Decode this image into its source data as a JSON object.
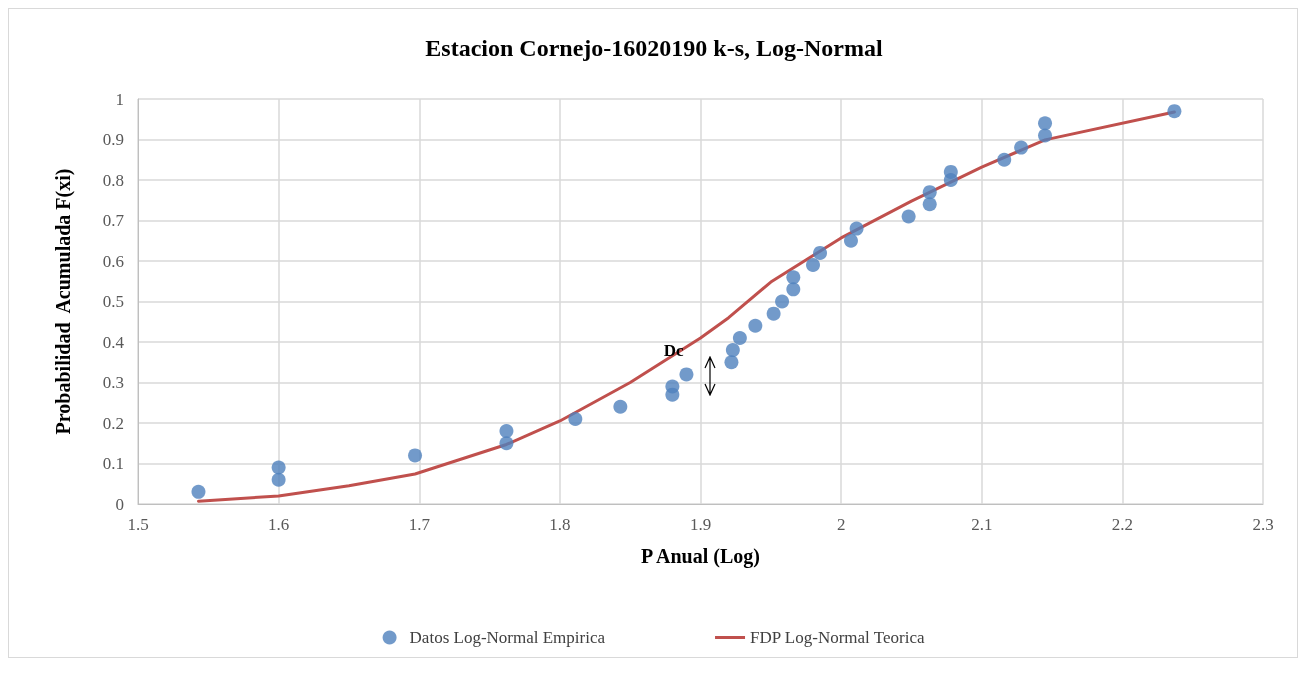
{
  "chart_data": {
    "type": "scatter",
    "title": "Estacion Cornejo-16020190 k-s, Log-Normal",
    "xlabel": "P Anual (Log)",
    "ylabel": "Probabilidad  Acumulada F(xi)",
    "xlim": [
      1.5,
      2.3
    ],
    "xticks": [
      1.5,
      1.6,
      1.7,
      1.8,
      1.9,
      2,
      2.1,
      2.2,
      2.3
    ],
    "ylim": [
      0,
      1
    ],
    "yticks": [
      0,
      0.1,
      0.2,
      0.3,
      0.4,
      0.5,
      0.6,
      0.7,
      0.8,
      0.9,
      1
    ],
    "grid": true,
    "legend": "bottom",
    "marker": "circle",
    "annotations": [
      {
        "text": "Dc",
        "x": 1.895,
        "y": 0.4
      }
    ],
    "series": [
      {
        "name": "Datos Log-Normal Empirica",
        "color": "#4f81bd",
        "x": [
          1.543,
          1.6,
          1.6,
          1.697,
          1.762,
          1.762,
          1.811,
          1.843,
          1.88,
          1.88,
          1.89,
          1.922,
          1.923,
          1.928,
          1.939,
          1.952,
          1.958,
          1.966,
          1.966,
          1.98,
          1.985,
          2.007,
          2.011,
          2.048,
          2.063,
          2.063,
          2.078,
          2.078,
          2.116,
          2.128,
          2.145,
          2.145,
          2.237
        ],
        "values": [
          0.03,
          0.06,
          0.09,
          0.12,
          0.15,
          0.18,
          0.21,
          0.24,
          0.27,
          0.29,
          0.32,
          0.35,
          0.38,
          0.41,
          0.44,
          0.47,
          0.5,
          0.53,
          0.56,
          0.59,
          0.62,
          0.65,
          0.68,
          0.71,
          0.74,
          0.77,
          0.8,
          0.82,
          0.85,
          0.88,
          0.91,
          0.94,
          0.97
        ]
      },
      {
        "name": "FDP Log-Normal Teorica",
        "type": "line",
        "color": "#c0504d",
        "marker": "none",
        "x": [
          1.543,
          1.6,
          1.65,
          1.697,
          1.762,
          1.8,
          1.85,
          1.9,
          1.92,
          1.95,
          2,
          2.05,
          2.1,
          2.145,
          2.237
        ],
        "values": [
          0.007,
          0.02,
          0.045,
          0.074,
          0.147,
          0.205,
          0.3,
          0.41,
          0.46,
          0.548,
          0.657,
          0.748,
          0.832,
          0.899,
          0.968
        ]
      }
    ]
  }
}
